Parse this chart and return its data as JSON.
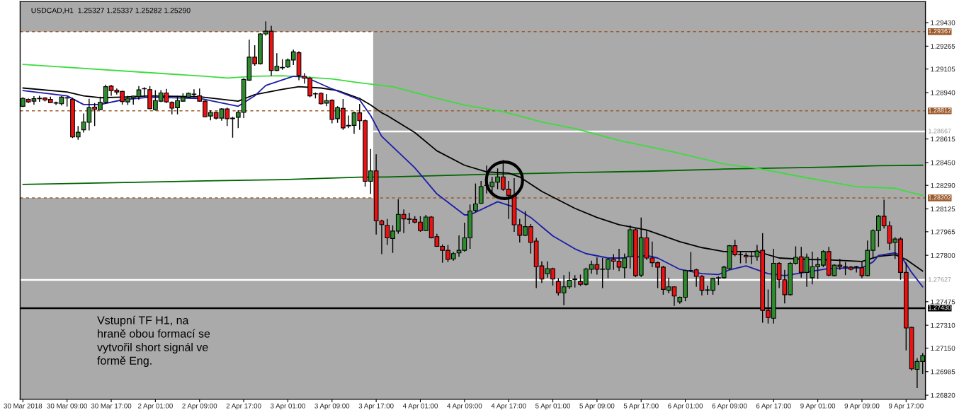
{
  "chart_data": {
    "type": "candlestick",
    "title": "USDCAD,H1  1.25327 1.25337 1.25282 1.25290",
    "annotations": [
      "Vstupní TF H1, na\nhraně obou formací se\nvytvořil short signál ve\nformě Eng."
    ],
    "ylim": [
      1.26791,
      1.29577
    ],
    "categories": [
      "30 Mar 2018",
      null,
      null,
      null,
      null,
      null,
      null,
      null,
      "30 Mar 09:00",
      null,
      null,
      null,
      null,
      null,
      null,
      null,
      "30 Mar 17:00",
      null,
      null,
      null,
      null,
      null,
      null,
      null,
      "2 Apr 01:00",
      null,
      null,
      null,
      null,
      null,
      null,
      null,
      "2 Apr 09:00",
      null,
      null,
      null,
      null,
      null,
      null,
      null,
      "2 Apr 17:00",
      null,
      null,
      null,
      null,
      null,
      null,
      null,
      "3 Apr 01:00",
      null,
      null,
      null,
      null,
      null,
      null,
      null,
      "3 Apr 09:00",
      null,
      null,
      null,
      null,
      null,
      null,
      null,
      "3 Apr 17:00",
      null,
      null,
      null,
      null,
      null,
      null,
      null,
      "4 Apr 01:00",
      null,
      null,
      null,
      null,
      null,
      null,
      null,
      "4 Apr 09:00",
      null,
      null,
      null,
      null,
      null,
      null,
      null,
      "4 Apr 17:00",
      null,
      null,
      null,
      null,
      null,
      null,
      null,
      "5 Apr 01:00",
      null,
      null,
      null,
      null,
      null,
      null,
      null,
      "5 Apr 09:00",
      null,
      null,
      null,
      null,
      null,
      null,
      null,
      "5 Apr 17:00",
      null,
      null,
      null,
      null,
      null,
      null,
      null,
      "6 Apr 01:00",
      null,
      null,
      null,
      null,
      null,
      null,
      null,
      "6 Apr 09:00",
      null,
      null,
      null,
      null,
      null,
      null,
      null,
      "6 Apr 17:00",
      null,
      null,
      null,
      null,
      null,
      null,
      null,
      "9 Apr 01:00",
      null,
      null,
      null,
      null,
      null,
      null,
      null,
      "9 Apr 09:00",
      null,
      null,
      null,
      null,
      null,
      null,
      null,
      "9 Apr 17:00",
      null,
      null,
      null
    ],
    "yticks": [
      {
        "value": 1.2943,
        "label": "1.29430"
      },
      {
        "value": 1.29265,
        "label": "1.29265"
      },
      {
        "value": 1.29105,
        "label": "1.29105"
      },
      {
        "value": 1.2894,
        "label": "1.28940"
      },
      {
        "value": 1.28615,
        "label": "1.28615"
      },
      {
        "value": 1.2845,
        "label": "1.28450"
      },
      {
        "value": 1.2829,
        "label": "1.28290"
      },
      {
        "value": 1.28125,
        "label": "1.28125"
      },
      {
        "value": 1.27965,
        "label": "1.27965"
      },
      {
        "value": 1.278,
        "label": "1.27800"
      },
      {
        "value": 1.27475,
        "label": "1.27475"
      },
      {
        "value": 1.2731,
        "label": "1.27310"
      },
      {
        "value": 1.2715,
        "label": "1.27150"
      },
      {
        "value": 1.26985,
        "label": "1.26985"
      },
      {
        "value": 1.2682,
        "label": "1.26820"
      }
    ],
    "bands": [
      {
        "axis": "y",
        "from": 1.28202,
        "to": 1.29367,
        "color": "#ffffff"
      }
    ],
    "ref_lines": [
      {
        "axis": "y",
        "value": 1.29367,
        "label": "1.29367",
        "color": "#9c5a2c",
        "line_style": "dashed"
      },
      {
        "axis": "y",
        "value": 1.28812,
        "label": "1.28812",
        "color": "#9c5a2c",
        "line_style": "dashed"
      },
      {
        "axis": "y",
        "value": 1.28667,
        "label": "1.28667",
        "color": "#ffffff",
        "line_style": "solid"
      },
      {
        "axis": "y",
        "value": 1.28202,
        "label": "1.28202",
        "color": "#9c5a2c",
        "line_style": "dashed"
      },
      {
        "axis": "y",
        "value": 1.27627,
        "label": "1.27627",
        "color": "#ffffff",
        "line_style": "solid"
      },
      {
        "axis": "y",
        "value": 1.2743,
        "label": "1.27430",
        "color": "#000000",
        "line_style": "solid"
      }
    ],
    "series": [
      {
        "type": "line",
        "color": "#006400",
        "values": [
          1.28297,
          null,
          null,
          null,
          null,
          null,
          null,
          null,
          null,
          null,
          null,
          null,
          null,
          null,
          null,
          null,
          null,
          null,
          null,
          null,
          null,
          null,
          null,
          null,
          null,
          null,
          null,
          null,
          null,
          null,
          null,
          null,
          null,
          1.28321,
          null,
          null,
          null,
          null,
          null,
          null,
          null,
          null,
          null,
          null,
          null,
          null,
          null,
          1.2833,
          null,
          null,
          null,
          null,
          null,
          null,
          null,
          null,
          null,
          null,
          null,
          null,
          null,
          1.28347,
          null,
          null,
          null,
          null,
          1.28349,
          null,
          null,
          null,
          null,
          null,
          null,
          null,
          null,
          null,
          null,
          null,
          null,
          null,
          null,
          null,
          null,
          null,
          1.28367,
          null,
          null,
          null,
          null,
          null,
          null,
          null,
          null,
          null,
          null,
          null,
          null,
          null,
          null,
          null,
          1.2838,
          null,
          null,
          null,
          null,
          null,
          null,
          null,
          null,
          null,
          null,
          null,
          null,
          1.28389,
          null,
          null,
          null,
          null,
          null,
          null,
          null,
          null,
          null,
          null,
          null,
          null,
          null,
          1.28404,
          null,
          null,
          null,
          null,
          null,
          null,
          null,
          null,
          null,
          null,
          null,
          null,
          null,
          null,
          null,
          null,
          null,
          null,
          1.28418,
          null,
          null,
          null,
          null,
          null,
          null,
          null,
          null,
          1.28428,
          null,
          null,
          null,
          null,
          null,
          null,
          null,
          1.28431
        ]
      },
      {
        "type": "line",
        "color": "#3ddc3d",
        "values": [
          1.29137,
          null,
          null,
          null,
          null,
          null,
          null,
          null,
          null,
          null,
          null,
          null,
          null,
          null,
          null,
          null,
          null,
          null,
          null,
          null,
          null,
          null,
          null,
          null,
          null,
          null,
          null,
          null,
          null,
          null,
          null,
          null,
          null,
          1.29054,
          null,
          null,
          null,
          1.29042,
          null,
          null,
          null,
          null,
          1.29054,
          null,
          null,
          null,
          null,
          1.29058,
          null,
          null,
          null,
          null,
          null,
          null,
          null,
          null,
          1.29036,
          null,
          null,
          null,
          null,
          1.29009,
          null,
          null,
          null,
          null,
          null,
          1.28981,
          null,
          null,
          null,
          null,
          null,
          null,
          null,
          1.28899,
          null,
          null,
          null,
          null,
          1.28853,
          null,
          null,
          null,
          null,
          null,
          null,
          1.28807,
          null,
          null,
          null,
          null,
          null,
          null,
          1.28734,
          null,
          null,
          null,
          null,
          null,
          1.28688,
          null,
          null,
          null,
          null,
          null,
          null,
          null,
          1.28605,
          null,
          null,
          null,
          null,
          null,
          null,
          null,
          null,
          null,
          1.28523,
          null,
          null,
          null,
          null,
          null,
          null,
          null,
          null,
          1.2844,
          null,
          null,
          null,
          null,
          null,
          1.28409,
          null,
          null,
          null,
          null,
          null,
          null,
          null,
          null,
          1.28343,
          null,
          null,
          null,
          null,
          null,
          null,
          null,
          null,
          1.28281,
          null,
          null,
          null,
          null,
          null,
          null,
          1.2827,
          null,
          1.28248,
          null,
          null,
          1.2822
        ]
      },
      {
        "type": "line",
        "color": "#000000",
        "values": [
          1.28972,
          null,
          null,
          null,
          null,
          null,
          null,
          null,
          1.28944,
          null,
          null,
          1.28917,
          null,
          null,
          1.28904,
          null,
          null,
          null,
          1.28908,
          null,
          null,
          null,
          null,
          1.28917,
          null,
          null,
          null,
          null,
          null,
          null,
          null,
          null,
          1.28911,
          null,
          null,
          null,
          null,
          null,
          null,
          1.2888,
          null,
          null,
          1.28926,
          null,
          null,
          null,
          null,
          1.28963,
          null,
          null,
          1.28981,
          null,
          null,
          null,
          1.28972,
          null,
          null,
          1.28954,
          null,
          null,
          null,
          1.28899,
          null,
          1.28853,
          null,
          1.28798,
          1.28779,
          null,
          null,
          null,
          null,
          1.2866,
          null,
          null,
          null,
          1.28532,
          null,
          null,
          null,
          null,
          1.28431,
          null,
          null,
          null,
          1.28385,
          null,
          null,
          null,
          1.28376,
          null,
          1.28349,
          null,
          null,
          null,
          1.28248,
          null,
          null,
          null,
          null,
          null,
          1.28129,
          null,
          null,
          null,
          1.28065,
          null,
          null,
          null,
          1.28014,
          null,
          null,
          null,
          null,
          1.27977,
          null,
          null,
          null,
          null,
          null,
          1.27896,
          null,
          null,
          null,
          1.27854,
          null,
          null,
          null,
          1.27826,
          null,
          null,
          null,
          null,
          null,
          1.27826,
          null,
          null,
          null,
          1.27781,
          null,
          null,
          null,
          null,
          1.27771,
          null,
          null,
          null,
          1.27768,
          null,
          null,
          null,
          null,
          null,
          1.27757,
          null,
          null,
          1.27793,
          null,
          null,
          1.27804,
          null,
          1.27771,
          null,
          null,
          1.27689
        ]
      },
      {
        "type": "line",
        "color": "#1c1ca8",
        "values": [
          1.28954,
          null,
          null,
          null,
          null,
          null,
          null,
          null,
          1.28917,
          null,
          null,
          1.28856,
          null,
          null,
          1.28856,
          null,
          null,
          null,
          1.28889,
          null,
          null,
          null,
          null,
          1.28908,
          null,
          null,
          null,
          null,
          null,
          null,
          null,
          null,
          1.28899,
          null,
          null,
          null,
          null,
          null,
          null,
          1.28844,
          null,
          null,
          1.28917,
          null,
          1.2899,
          null,
          null,
          null,
          null,
          1.29054,
          null,
          1.29051,
          null,
          null,
          null,
          null,
          1.28966,
          null,
          null,
          null,
          null,
          1.28889,
          null,
          1.28779,
          null,
          1.28633,
          null,
          null,
          null,
          null,
          null,
          1.28413,
          null,
          null,
          null,
          1.2823,
          null,
          null,
          null,
          null,
          1.28083,
          1.28083,
          null,
          null,
          null,
          null,
          1.28175,
          null,
          null,
          1.28138,
          null,
          null,
          1.28065,
          null,
          null,
          null,
          1.27936,
          null,
          null,
          null,
          1.27845,
          null,
          1.27812,
          null,
          null,
          null,
          1.27781,
          null,
          null,
          1.27781,
          1.27799,
          1.27786,
          null,
          1.27799,
          null,
          1.27781,
          null,
          null,
          null,
          1.27702,
          null,
          null,
          null,
          1.27671,
          null,
          null,
          1.27665,
          null,
          1.27698,
          null,
          null,
          1.27726,
          null,
          null,
          null,
          1.27671,
          null,
          null,
          1.27658,
          null,
          null,
          null,
          null,
          null,
          null,
          null,
          1.27707,
          null,
          null,
          null,
          null,
          null,
          1.27713,
          null,
          1.27753,
          1.27799,
          null,
          null,
          1.27817,
          1.27799,
          null,
          1.2768,
          null,
          1.27579
        ]
      }
    ],
    "ohlc": [
      [
        1.28844,
        1.28908,
        1.28838,
        1.28899
      ],
      [
        1.28893,
        1.28899,
        1.28867,
        1.28875
      ],
      [
        1.2888,
        1.28915,
        1.28856,
        1.28897
      ],
      [
        1.28897,
        1.28917,
        1.28875,
        1.289
      ],
      [
        1.28902,
        1.28908,
        1.28878,
        1.28888
      ],
      [
        1.28893,
        1.28911,
        1.28866,
        1.28869
      ],
      [
        1.28869,
        1.28877,
        1.28853,
        1.28866
      ],
      [
        1.28862,
        1.28915,
        1.28849,
        1.28908
      ],
      [
        1.28904,
        1.28911,
        1.28842,
        1.28902
      ],
      [
        1.28893,
        1.28904,
        1.28622,
        1.28629
      ],
      [
        1.28629,
        1.28706,
        1.28609,
        1.28662
      ],
      [
        1.28679,
        1.28794,
        1.2866,
        1.28734
      ],
      [
        1.28732,
        1.28897,
        1.28675,
        1.28834
      ],
      [
        1.28838,
        1.28867,
        1.28706,
        1.28822
      ],
      [
        1.2882,
        1.28911,
        1.28816,
        1.28871
      ],
      [
        1.28871,
        1.28996,
        1.28862,
        1.28981
      ],
      [
        1.28985,
        1.28994,
        1.28917,
        1.28954
      ],
      [
        1.28957,
        1.28968,
        1.28926,
        1.28944
      ],
      [
        1.28948,
        1.28954,
        1.28856,
        1.28877
      ],
      [
        1.28875,
        1.28917,
        1.28853,
        1.289
      ],
      [
        1.28904,
        1.28917,
        1.28856,
        1.28915
      ],
      [
        1.28911,
        1.28985,
        1.28889,
        1.28959
      ],
      [
        1.28966,
        1.28977,
        1.28911,
        1.28968
      ],
      [
        1.28961,
        1.28985,
        1.28823,
        1.28827
      ],
      [
        1.2882,
        1.28957,
        1.28814,
        1.28884
      ],
      [
        1.2888,
        1.28957,
        1.28873,
        1.28937
      ],
      [
        1.28937,
        1.28966,
        1.28867,
        1.28875
      ],
      [
        1.28871,
        1.28878,
        1.28787,
        1.28831
      ],
      [
        1.28834,
        1.28917,
        1.28787,
        1.28884
      ],
      [
        1.2888,
        1.28935,
        1.28875,
        1.28908
      ],
      [
        1.28908,
        1.28941,
        1.28904,
        1.28935
      ],
      [
        1.28926,
        1.28963,
        1.28908,
        1.2893
      ],
      [
        1.28917,
        1.28968,
        1.28875,
        1.2888
      ],
      [
        1.2888,
        1.28886,
        1.28767,
        1.2877
      ],
      [
        1.28776,
        1.28816,
        1.28746,
        1.28801
      ],
      [
        1.28801,
        1.28807,
        1.28752,
        1.28761
      ],
      [
        1.28761,
        1.28831,
        1.28743,
        1.28825
      ],
      [
        1.28825,
        1.28834,
        1.28706,
        1.28757
      ],
      [
        1.28761,
        1.2877,
        1.28624,
        1.28757
      ],
      [
        1.28767,
        1.28816,
        1.28691,
        1.28801
      ],
      [
        1.28801,
        1.2904,
        1.28761,
        1.29032
      ],
      [
        1.29027,
        1.29311,
        1.29021,
        1.29188
      ],
      [
        1.29188,
        1.29271,
        1.29128,
        1.29142
      ],
      [
        1.29142,
        1.29357,
        1.29137,
        1.29351
      ],
      [
        1.29351,
        1.29439,
        1.29339,
        1.2937
      ],
      [
        1.2937,
        1.29408,
        1.29058,
        1.29095
      ],
      [
        1.29095,
        1.29216,
        1.29091,
        1.29124
      ],
      [
        1.29113,
        1.29174,
        1.291,
        1.29117
      ],
      [
        1.29119,
        1.29179,
        1.29113,
        1.29168
      ],
      [
        1.29168,
        1.29241,
        1.29133,
        1.29225
      ],
      [
        1.29219,
        1.29229,
        1.29027,
        1.2906
      ],
      [
        1.29054,
        1.29076,
        1.29003,
        1.2904
      ],
      [
        1.2904,
        1.29051,
        1.28908,
        1.28917
      ],
      [
        1.2893,
        1.28941,
        1.28899,
        1.28932
      ],
      [
        1.28935,
        1.28941,
        1.28856,
        1.28862
      ],
      [
        1.28866,
        1.2893,
        1.28844,
        1.28884
      ],
      [
        1.28886,
        1.28893,
        1.28724,
        1.28752
      ],
      [
        1.28757,
        1.28844,
        1.28728,
        1.28834
      ],
      [
        1.28829,
        1.28895,
        1.28679,
        1.28693
      ],
      [
        1.28706,
        1.28779,
        1.28691,
        1.2871
      ],
      [
        1.2871,
        1.28807,
        1.28651,
        1.28798
      ],
      [
        1.28798,
        1.2886,
        1.28679,
        1.28743
      ],
      [
        1.28743,
        1.28752,
        1.28281,
        1.28318
      ],
      [
        1.28318,
        1.28545,
        1.2823,
        1.28391
      ],
      [
        1.28391,
        1.28508,
        1.27946,
        1.28042
      ],
      [
        1.28041,
        1.2805,
        1.27808,
        1.28015
      ],
      [
        1.2801,
        1.28055,
        1.27872,
        1.27922
      ],
      [
        1.27918,
        1.2801,
        1.27817,
        1.2797
      ],
      [
        1.2797,
        1.28193,
        1.27951,
        1.28087
      ],
      [
        1.28087,
        1.28122,
        1.27955,
        1.28055
      ],
      [
        1.28055,
        1.28098,
        1.28019,
        1.28052
      ],
      [
        1.28052,
        1.28074,
        1.28024,
        1.28032
      ],
      [
        1.28032,
        1.28074,
        1.27964,
        1.27973
      ],
      [
        1.27973,
        1.28083,
        1.2797,
        1.28068
      ],
      [
        1.28068,
        1.28074,
        1.27918,
        1.27923
      ],
      [
        1.27931,
        1.2795,
        1.27859,
        1.27863
      ],
      [
        1.27863,
        1.27876,
        1.27748,
        1.27835
      ],
      [
        1.27835,
        1.27872,
        1.27753,
        1.27771
      ],
      [
        1.27775,
        1.27823,
        1.27762,
        1.27812
      ],
      [
        1.27817,
        1.2794,
        1.2779,
        1.27835
      ],
      [
        1.27835,
        1.28028,
        1.27826,
        1.27922
      ],
      [
        1.27922,
        1.28156,
        1.27845,
        1.2811
      ],
      [
        1.28114,
        1.28303,
        1.28101,
        1.2816
      ],
      [
        1.28165,
        1.28321,
        1.2816,
        1.28281
      ],
      [
        1.28288,
        1.28428,
        1.28233,
        1.2829
      ],
      [
        1.28281,
        1.28349,
        1.2822,
        1.28312
      ],
      [
        1.28312,
        1.28409,
        1.28263,
        1.28349
      ],
      [
        1.28349,
        1.28468,
        1.28252,
        1.28263
      ],
      [
        1.28263,
        1.28321,
        1.28055,
        1.2822
      ],
      [
        1.2822,
        1.2834,
        1.27964,
        1.28014
      ],
      [
        1.28014,
        1.28055,
        1.2789,
        1.2794
      ],
      [
        1.2794,
        1.2811,
        1.27936,
        1.28001
      ],
      [
        1.28001,
        1.28019,
        1.27812,
        1.2789
      ],
      [
        1.279,
        1.27922,
        1.2757,
        1.2772
      ],
      [
        1.27726,
        1.27757,
        1.27606,
        1.27634
      ],
      [
        1.27671,
        1.27757,
        1.27643,
        1.27707
      ],
      [
        1.27707,
        1.27713,
        1.27588,
        1.27634
      ],
      [
        1.27616,
        1.2764,
        1.27518,
        1.27537
      ],
      [
        1.27537,
        1.27661,
        1.27451,
        1.27579
      ],
      [
        1.27579,
        1.27684,
        1.27564,
        1.27625
      ],
      [
        1.27634,
        1.27661,
        1.27574,
        1.27629
      ],
      [
        1.27616,
        1.27665,
        1.27585,
        1.27597
      ],
      [
        1.27597,
        1.27713,
        1.27588,
        1.27704
      ],
      [
        1.27702,
        1.27762,
        1.27671,
        1.27735
      ],
      [
        1.27735,
        1.27786,
        1.27665,
        1.27702
      ],
      [
        1.27702,
        1.27781,
        1.2757,
        1.27704
      ],
      [
        1.27702,
        1.27781,
        1.2764,
        1.27771
      ],
      [
        1.27771,
        1.27808,
        1.27698,
        1.27759
      ],
      [
        1.27759,
        1.27845,
        1.27689,
        1.27717
      ],
      [
        1.27713,
        1.27812,
        1.2764,
        1.27781
      ],
      [
        1.2779,
        1.2801,
        1.27707,
        1.27979
      ],
      [
        1.27979,
        1.27988,
        1.27647,
        1.27658
      ],
      [
        1.27661,
        1.28065,
        1.27647,
        1.27923
      ],
      [
        1.27922,
        1.27977,
        1.27768,
        1.27781
      ],
      [
        1.27781,
        1.27896,
        1.27717,
        1.27748
      ],
      [
        1.27748,
        1.27757,
        1.2757,
        1.27717
      ],
      [
        1.27717,
        1.27726,
        1.27524,
        1.27561
      ],
      [
        1.27555,
        1.27643,
        1.27533,
        1.27579
      ],
      [
        1.27579,
        1.27583,
        1.27445,
        1.27515
      ],
      [
        1.27474,
        1.27511,
        1.2746,
        1.27506
      ],
      [
        1.27506,
        1.27698,
        1.27478,
        1.27693
      ],
      [
        1.27694,
        1.27823,
        1.27684,
        1.27693
      ],
      [
        1.27698,
        1.27707,
        1.27579,
        1.27652
      ],
      [
        1.27652,
        1.27661,
        1.27518,
        1.27555
      ],
      [
        1.27555,
        1.27588,
        1.27524,
        1.27558
      ],
      [
        1.27555,
        1.27643,
        1.27524,
        1.27638
      ],
      [
        1.2764,
        1.27652,
        1.27592,
        1.27643
      ],
      [
        1.27643,
        1.27726,
        1.27638,
        1.27717
      ],
      [
        1.27707,
        1.27872,
        1.27698,
        1.27867
      ],
      [
        1.27867,
        1.27909,
        1.27793,
        1.27804
      ],
      [
        1.27806,
        1.2783,
        1.27744,
        1.27804
      ],
      [
        1.27799,
        1.27817,
        1.27744,
        1.2779
      ],
      [
        1.27793,
        1.2783,
        1.27738,
        1.27795
      ],
      [
        1.2779,
        1.27872,
        1.27762,
        1.2783
      ],
      [
        1.27835,
        1.27955,
        1.27328,
        1.27414
      ],
      [
        1.27414,
        1.27561,
        1.27322,
        1.27364
      ],
      [
        1.27359,
        1.27845,
        1.27322,
        1.27744
      ],
      [
        1.27744,
        1.27753,
        1.2757,
        1.27629
      ],
      [
        1.27629,
        1.27698,
        1.27463,
        1.27524
      ],
      [
        1.27524,
        1.27753,
        1.27518,
        1.27744
      ],
      [
        1.27744,
        1.27863,
        1.27735,
        1.27786
      ],
      [
        1.2779,
        1.27859,
        1.27643,
        1.2768
      ],
      [
        1.2768,
        1.27812,
        1.27579,
        1.27786
      ],
      [
        1.27643,
        1.27826,
        1.27597,
        1.2772
      ],
      [
        1.2772,
        1.27786,
        1.27634,
        1.27735
      ],
      [
        1.27731,
        1.27835,
        1.27717,
        1.27826
      ],
      [
        1.27826,
        1.27859,
        1.27652,
        1.27661
      ],
      [
        1.27658,
        1.27738,
        1.27652,
        1.27731
      ],
      [
        1.27731,
        1.27775,
        1.27698,
        1.2772
      ],
      [
        1.27717,
        1.27753,
        1.27661,
        1.2772
      ],
      [
        1.27717,
        1.27726,
        1.27694,
        1.27702
      ],
      [
        1.2772,
        1.27726,
        1.2768,
        1.27717
      ],
      [
        1.27713,
        1.27753,
        1.2764,
        1.27658
      ],
      [
        1.27658,
        1.27903,
        1.27652,
        1.27835
      ],
      [
        1.27835,
        1.27982,
        1.27781,
        1.27973
      ],
      [
        1.27973,
        1.28083,
        1.27859,
        1.28074
      ],
      [
        1.28074,
        1.28189,
        1.27988,
        1.28006
      ],
      [
        1.28006,
        1.28037,
        1.27835,
        1.27885
      ],
      [
        1.2789,
        1.27927,
        1.27775,
        1.27914
      ],
      [
        1.27914,
        1.27927,
        1.27629,
        1.2768
      ],
      [
        1.2768,
        1.27749,
        1.27133,
        1.27291
      ],
      [
        1.27295,
        1.27298,
        1.26992,
        1.27005
      ],
      [
        1.27001,
        1.27079,
        1.2687,
        1.27056
      ],
      [
        1.27056,
        1.27115,
        1.26969,
        1.27097
      ]
    ]
  }
}
